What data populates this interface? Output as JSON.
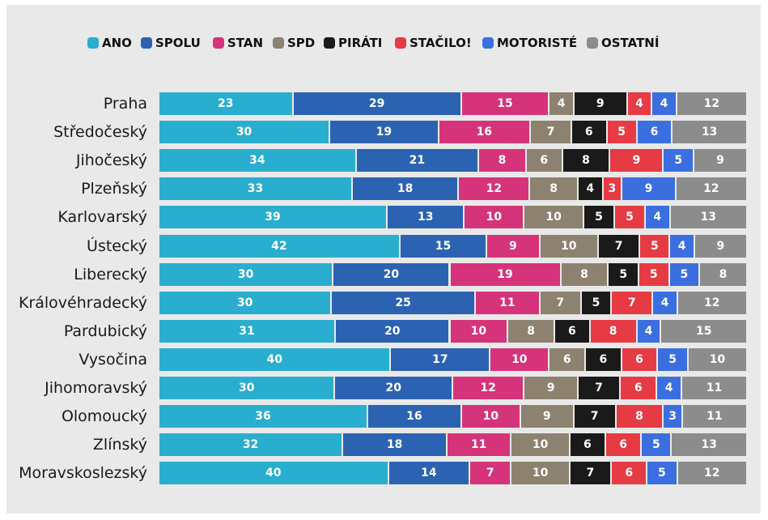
{
  "chart_data": {
    "type": "bar",
    "orientation": "horizontal",
    "stacked": true,
    "title": "",
    "xlabel": "",
    "ylabel": "",
    "legend_position": "top",
    "grid": false,
    "categories": [
      "Praha",
      "Středočeský",
      "Jihočeský",
      "Plzeňský",
      "Karlovarský",
      "Ústecký",
      "Liberecký",
      "Královéhradecký",
      "Pardubický",
      "Vysočina",
      "Jihomoravský",
      "Olomoucký",
      "Zlínský",
      "Moravskoslezský"
    ],
    "series": [
      {
        "name": "ANO",
        "color": "#2aaed0",
        "values": [
          23,
          30,
          34,
          33,
          39,
          42,
          30,
          30,
          31,
          40,
          30,
          36,
          32,
          40
        ]
      },
      {
        "name": "SPOLU",
        "color": "#2c62b2",
        "values": [
          29,
          19,
          21,
          18,
          13,
          15,
          20,
          25,
          20,
          17,
          20,
          16,
          18,
          14
        ]
      },
      {
        "name": "STAN",
        "color": "#d6347a",
        "values": [
          15,
          16,
          8,
          12,
          10,
          9,
          19,
          11,
          10,
          10,
          12,
          10,
          11,
          7
        ]
      },
      {
        "name": "SPD",
        "color": "#8d8270",
        "values": [
          4,
          7,
          6,
          8,
          10,
          10,
          8,
          7,
          8,
          6,
          9,
          9,
          10,
          10
        ]
      },
      {
        "name": "PIRÁTI",
        "color": "#1a1a1a",
        "values": [
          9,
          6,
          8,
          4,
          5,
          7,
          5,
          5,
          6,
          6,
          7,
          7,
          6,
          7
        ]
      },
      {
        "name": "STAČILO!",
        "color": "#e63b44",
        "values": [
          4,
          5,
          9,
          3,
          5,
          5,
          5,
          7,
          8,
          6,
          6,
          8,
          6,
          6
        ]
      },
      {
        "name": "MOTORISTÉ",
        "color": "#3b6fe0",
        "values": [
          4,
          6,
          5,
          9,
          4,
          4,
          5,
          4,
          4,
          5,
          4,
          3,
          5,
          5
        ]
      },
      {
        "name": "OSTATNÍ",
        "color": "#8c8c8c",
        "values": [
          12,
          13,
          9,
          12,
          13,
          9,
          8,
          12,
          15,
          10,
          11,
          11,
          13,
          12
        ]
      }
    ]
  }
}
